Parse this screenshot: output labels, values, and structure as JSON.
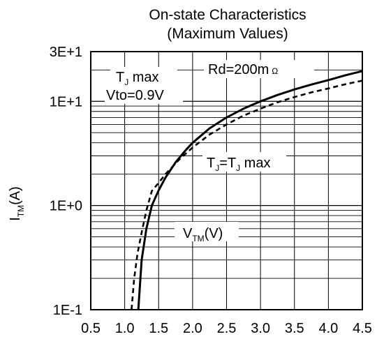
{
  "chart_data": {
    "type": "line",
    "title_lines": [
      "On-state Characteristics",
      "(Maximum Values)"
    ],
    "xlabel": "V",
    "xlabel_sub": "TM",
    "xlabel_unit": "(V)",
    "ylabel": "I",
    "ylabel_sub": "TM",
    "ylabel_unit": "(A)",
    "xlim": [
      0.5,
      4.5
    ],
    "ylim": [
      0.1,
      30
    ],
    "y_scale": "log",
    "grid": true,
    "x_ticks": [
      0.5,
      1.0,
      1.5,
      2.0,
      2.5,
      3.0,
      3.5,
      4.0,
      4.5
    ],
    "x_tick_labels": [
      "0.5",
      "1.0",
      "1.5",
      "2.0",
      "2.5",
      "3.0",
      "3.5",
      "4.0",
      "4.5"
    ],
    "y_tick_values": [
      0.1,
      1,
      10,
      30
    ],
    "y_tick_labels": [
      "1E-1",
      "1E+0",
      "1E+1",
      "3E+1"
    ],
    "series": [
      {
        "style": "solid",
        "points": [
          [
            1.2,
            0.1
          ],
          [
            1.25,
            0.3
          ],
          [
            1.32,
            0.6
          ],
          [
            1.4,
            1.0
          ],
          [
            1.5,
            1.4
          ],
          [
            1.6,
            1.85
          ],
          [
            1.75,
            2.6
          ],
          [
            1.9,
            3.4
          ],
          [
            2.0,
            4.0
          ],
          [
            2.25,
            5.5
          ],
          [
            2.5,
            7.0
          ],
          [
            2.75,
            8.5
          ],
          [
            3.0,
            10.0
          ],
          [
            3.25,
            11.5
          ],
          [
            3.5,
            13.0
          ],
          [
            3.75,
            14.5
          ],
          [
            4.0,
            16.0
          ],
          [
            4.25,
            17.8
          ],
          [
            4.5,
            19.5
          ]
        ]
      },
      {
        "style": "dashed",
        "points": [
          [
            1.1,
            0.1
          ],
          [
            1.14,
            0.2
          ],
          [
            1.19,
            0.35
          ],
          [
            1.25,
            0.55
          ],
          [
            1.32,
            0.9
          ],
          [
            1.4,
            1.38
          ],
          [
            1.5,
            1.65
          ],
          [
            1.6,
            2.0
          ],
          [
            1.8,
            2.75
          ],
          [
            2.0,
            3.6
          ],
          [
            2.25,
            4.8
          ],
          [
            2.5,
            6.0
          ],
          [
            2.75,
            7.3
          ],
          [
            3.0,
            8.5
          ],
          [
            3.25,
            9.8
          ],
          [
            3.5,
            11.0
          ],
          [
            3.75,
            12.2
          ],
          [
            4.0,
            13.3
          ],
          [
            4.25,
            14.6
          ],
          [
            4.5,
            15.8
          ]
        ]
      }
    ],
    "annotations": {
      "tj_max": {
        "main": "T",
        "sub": "J",
        "rest": " max"
      },
      "vto": "Vto=0.9V",
      "rd": "Rd=200m",
      "rd_unit": "Ω",
      "tj_eq": {
        "main": "T",
        "sub": "J",
        "mid": "=T",
        "sub2": "J",
        "rest": " max"
      }
    }
  }
}
